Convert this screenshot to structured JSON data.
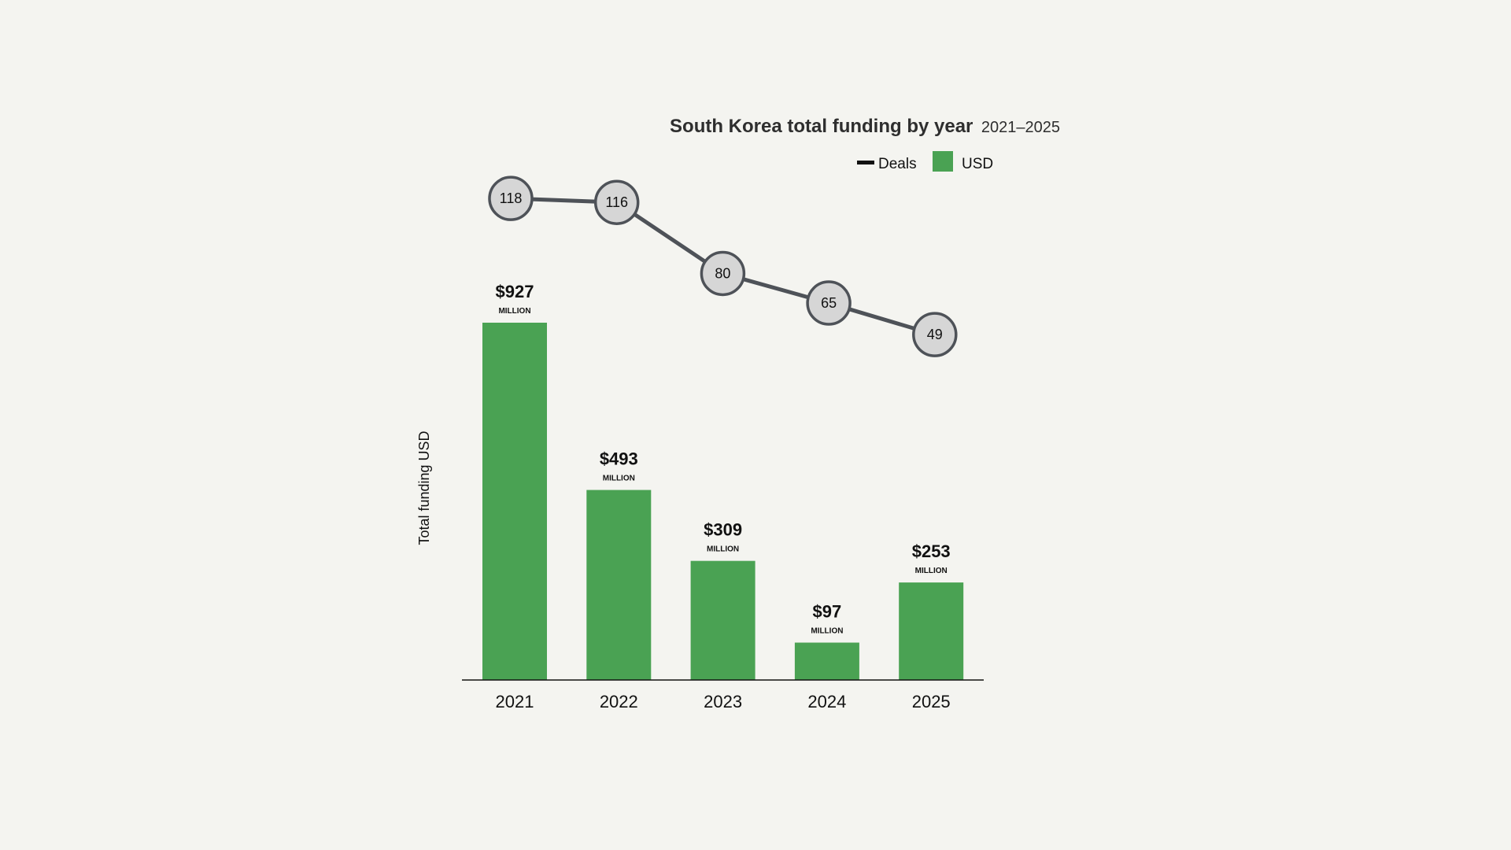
{
  "chart_data": {
    "type": "bar",
    "title": "South Korea total funding by year",
    "subtitle": "2021–2025",
    "xlabel": "",
    "ylabel": "Total funding USD",
    "categories": [
      "2021",
      "2022",
      "2023",
      "2024",
      "2025"
    ],
    "series": [
      {
        "name": "USD",
        "type": "bar",
        "unit": "MILLION",
        "values": [
          927,
          493,
          309,
          97,
          253
        ],
        "labels": [
          "$927",
          "$493",
          "$309",
          "$97",
          "$253"
        ],
        "color": "#4aa253"
      },
      {
        "name": "Deals",
        "type": "line",
        "values": [
          118,
          116,
          80,
          65,
          49
        ],
        "color": "#4e5258",
        "marker_fill": "#d6d6d6"
      }
    ],
    "ylim": [
      0,
      927
    ],
    "grid": false,
    "legend": {
      "position": "top-right",
      "entries": [
        "Deals",
        "USD"
      ]
    }
  }
}
